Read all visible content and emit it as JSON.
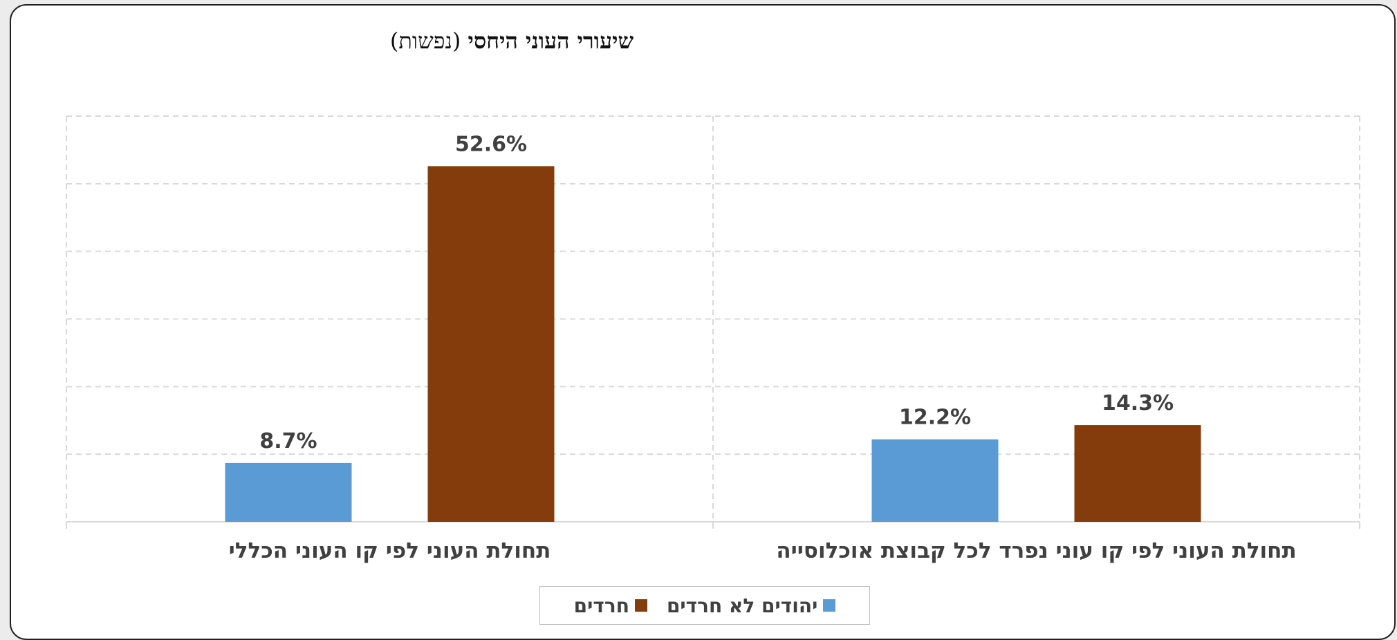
{
  "title": {
    "bold": "שיעורי העוני היחסי",
    "light": "(נפשות)"
  },
  "colors": {
    "haredim": "#843C0C",
    "non_haredi_jews": "#5B9BD5",
    "grid": "#d9d9d9",
    "text": "#404040"
  },
  "legend": {
    "items": [
      {
        "label": "חרדים",
        "color": "#843C0C"
      },
      {
        "label": "יהודים לא חרדים",
        "color": "#5B9BD5"
      }
    ]
  },
  "chart_data": {
    "type": "bar",
    "categories": [
      "תחולת העוני לפי קו העוני הכללי",
      "תחולת העוני לפי קו עוני נפרד לכל קבוצת אוכלוסייה"
    ],
    "series": [
      {
        "name": "יהודים לא חרדים",
        "values": [
          8.7,
          12.2
        ],
        "labels": [
          "8.7%",
          "12.2%"
        ],
        "color": "#5B9BD5"
      },
      {
        "name": "חרדים",
        "values": [
          52.6,
          14.3
        ],
        "labels": [
          "52.6%",
          "14.3%"
        ],
        "color": "#843C0C"
      }
    ],
    "ylim": [
      0,
      60
    ],
    "y_axis_visible": false,
    "grid": true,
    "grid_style": "dashed",
    "value_unit": "%",
    "legend_position": "bottom"
  }
}
